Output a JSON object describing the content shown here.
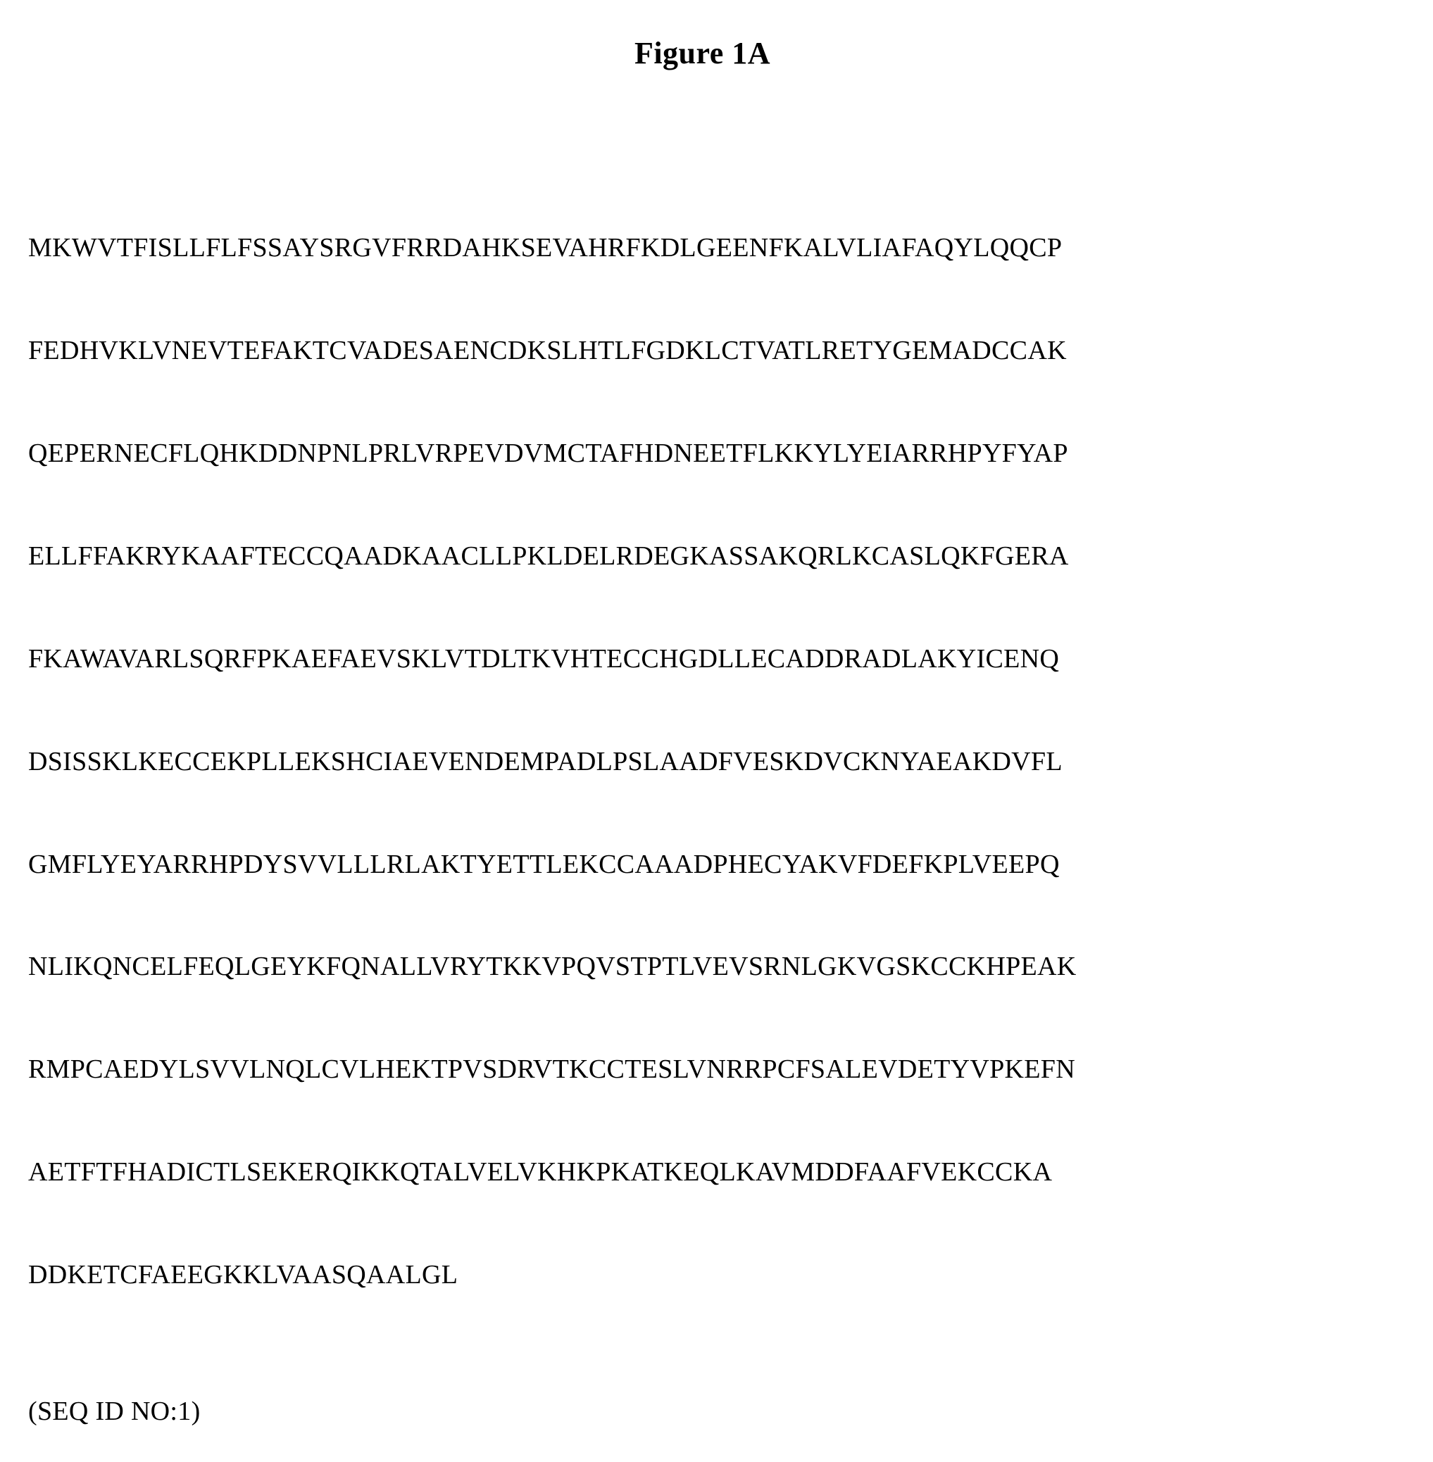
{
  "figure": {
    "title": "Figure 1A",
    "sequence_lines": [
      "MKWVTFISLLFLFSSAYSRGVFRRDAHKSEVAHRFKDLGEENFKALVLIAFAQYLQQCP",
      "FEDHVKLVNEVTEFAKTCVADESAENCDKSLHTLFGDKLCTVATLRETYGEMADCCAK",
      "QEPERNECFLQHKDDNPNLPRLVRPEVDVMCTAFHDNEETFLKKYLYEIARRHPYFYAP",
      "ELLFFAKRYKAAFTECCQAADKAACLLPKLDELRDEGKASSAKQRLKCASLQKFGERA",
      "FKAWAVARLSQRFPKAEFAEVSKLVTDLTKVHTECCHGDLLECADDRADLAKYICENQ",
      "DSISSKLKECCEKPLLEKSHCIAEVENDEMPADLPSLAADFVESKDVCKNYAEAKDVFL",
      "GMFLYEYARRHPDYSVVLLLRLAKTYETTLEKCCAAADPHECYAKVFDEFKPLVEEPQ",
      "NLIKQNCELFEQLGEYKFQNALLVRYTKKVPQVSTPTLVEVSRNLGKVGSKCCKHPEAK",
      "RMPCAEDYLSVVLNQLCVLHEKTPVSDRVTKCCTESLVNRRPCFSALEVDETYVPKEFN",
      "AETFTFHADICTLSEKERQIKKQTALVELVKHKPKATKEQLKAVMDDFAAFVEKCCKA",
      "DDKETCFAEEGKKLVAASQAALGL"
    ],
    "seq_id_label": "(SEQ ID NO:1)"
  },
  "styles": {
    "background_color": "#ffffff",
    "text_color": "#000000",
    "title_fontsize": 44,
    "body_fontsize": 38,
    "font_family": "Times New Roman"
  }
}
